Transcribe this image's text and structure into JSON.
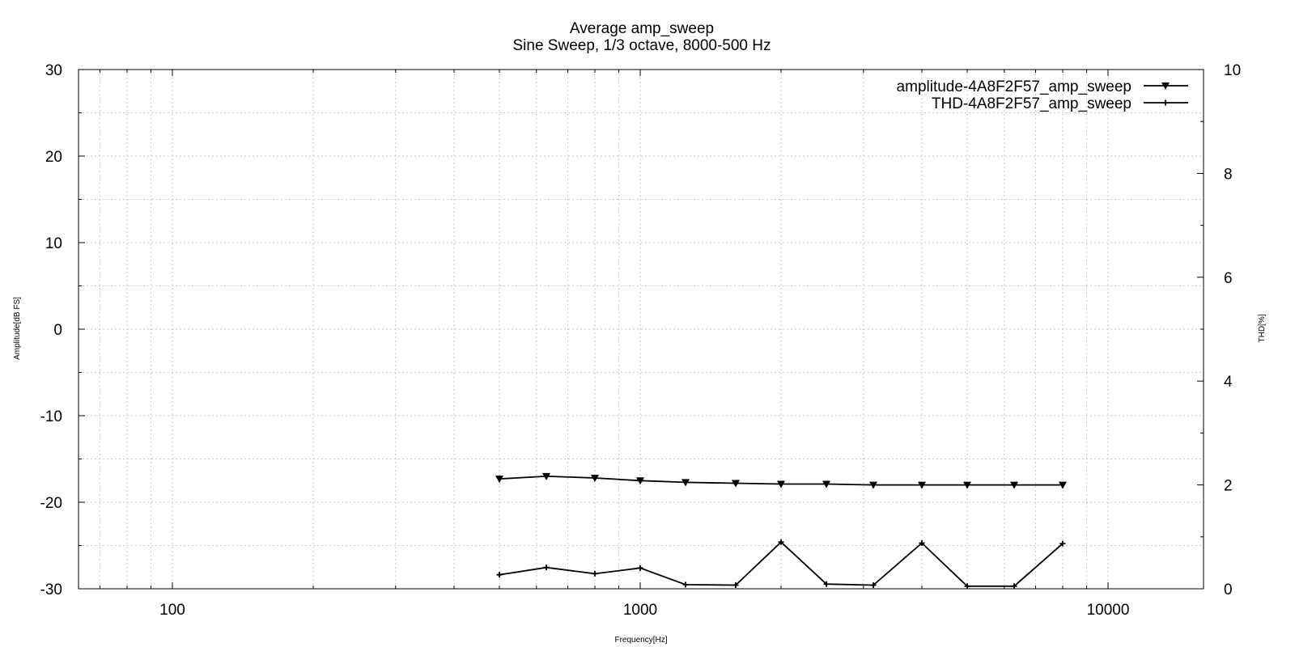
{
  "chart_data": {
    "type": "line",
    "title": "Average amp_sweep",
    "subtitle": "Sine Sweep, 1/3 octave, 8000-500 Hz",
    "xlabel": "Frequency[Hz]",
    "ylabel": "Amplitude[dB FS]",
    "y2label": "THD[%]",
    "xscale": "log",
    "xlim": [
      63,
      16000
    ],
    "ylim": [
      -30,
      30
    ],
    "y2lim": [
      0,
      10
    ],
    "xticks": [
      100,
      1000,
      10000
    ],
    "xtick_labels": [
      "100",
      "1000",
      "10000"
    ],
    "yticks": [
      -30,
      -20,
      -10,
      0,
      10,
      20,
      30
    ],
    "ytick_labels": [
      "-30",
      "-20",
      "-10",
      "0",
      "10",
      "20",
      "30"
    ],
    "y2ticks": [
      0,
      2,
      4,
      6,
      8,
      10
    ],
    "y2tick_labels": [
      "0",
      "2",
      "4",
      "6",
      "8",
      "10"
    ],
    "grid": true,
    "legend_position": "top-right",
    "series": [
      {
        "name": "amplitude-4A8F2F57_amp_sweep",
        "axis": "left",
        "marker": "triangle-down",
        "color": "#000000",
        "x": [
          500,
          630,
          800,
          1000,
          1250,
          1600,
          2000,
          2500,
          3150,
          4000,
          5000,
          6300,
          8000
        ],
        "y": [
          -17.3,
          -17.0,
          -17.2,
          -17.5,
          -17.7,
          -17.8,
          -17.9,
          -17.9,
          -18.0,
          -18.0,
          -18.0,
          -18.0,
          -18.0
        ]
      },
      {
        "name": "THD-4A8F2F57_amp_sweep",
        "axis": "right",
        "marker": "cross",
        "color": "#000000",
        "x": [
          500,
          630,
          800,
          1000,
          1250,
          1600,
          2000,
          2500,
          3150,
          4000,
          5000,
          6300,
          8000
        ],
        "y": [
          0.27,
          0.41,
          0.29,
          0.4,
          0.08,
          0.07,
          0.9,
          0.09,
          0.07,
          0.88,
          0.05,
          0.05,
          0.87
        ]
      }
    ]
  }
}
